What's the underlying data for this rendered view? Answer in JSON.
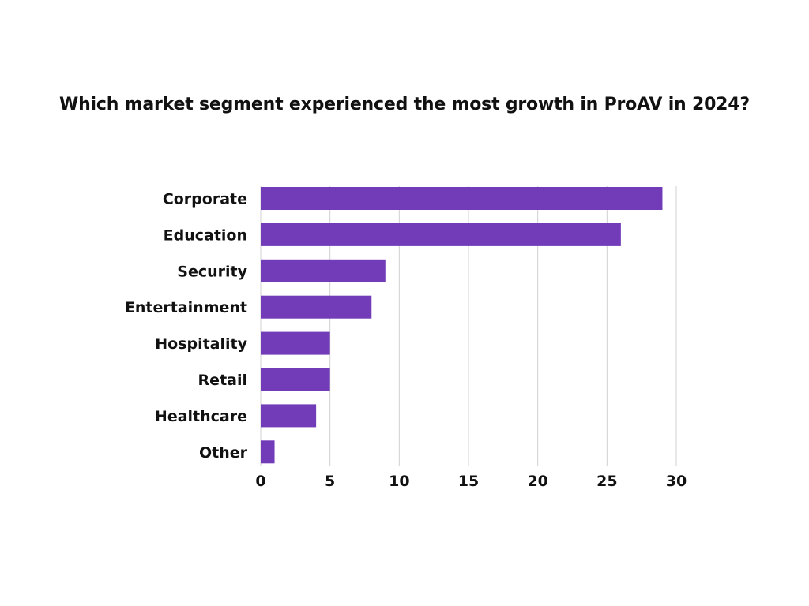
{
  "chart_data": {
    "type": "bar",
    "orientation": "horizontal",
    "title": "Which market segment experienced the most growth in ProAV in 2024?",
    "xlabel": "",
    "ylabel": "",
    "categories": [
      "Corporate",
      "Education",
      "Security",
      "Entertainment",
      "Hospitality",
      "Retail",
      "Healthcare",
      "Other"
    ],
    "values": [
      29,
      26,
      9,
      8,
      5,
      5,
      4,
      1
    ],
    "xlim": [
      0,
      30
    ],
    "x_ticks": [
      "0",
      "5",
      "10",
      "15",
      "20",
      "25",
      "30"
    ],
    "grid": "vertical",
    "legend": "none",
    "bar_color": "#723cb9",
    "grid_color": "#d0d0d0"
  }
}
